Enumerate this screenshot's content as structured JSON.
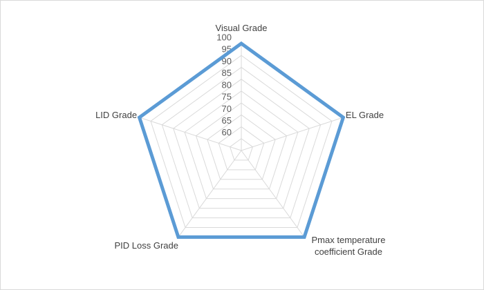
{
  "chart_data": {
    "type": "radar",
    "categories": [
      "Visual Grade",
      "EL Grade",
      "Pmax temperature coefficient Grade",
      "PID Loss Grade",
      "LID Grade"
    ],
    "series": [
      {
        "color": "#5b9bd5",
        "values": [
          100,
          100,
          100,
          100,
          100
        ]
      }
    ],
    "ylim": [
      55,
      100
    ],
    "yticks": [
      60,
      65,
      70,
      75,
      80,
      85,
      90,
      95,
      100
    ],
    "grid": true
  }
}
